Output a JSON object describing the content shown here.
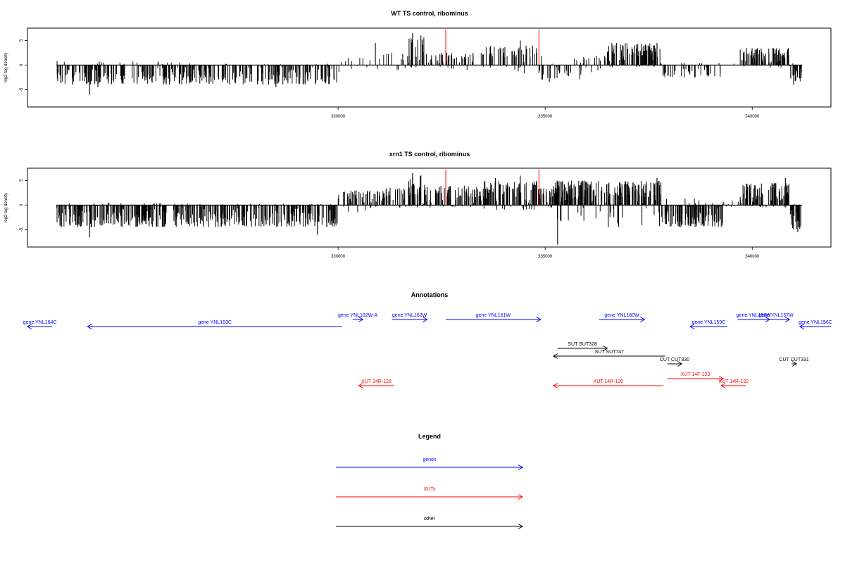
{
  "chart_data": [
    {
      "type": "bar",
      "title": "WT TS control, ribominus",
      "xlabel": "",
      "ylabel": "log2 tag density",
      "xlim": [
        322500,
        341900
      ],
      "ylim": [
        -8.5,
        7.5
      ],
      "xticks": [
        330000,
        335000,
        340000
      ],
      "xtick_labels": [
        "330000",
        "335000",
        "340000"
      ],
      "yticks": [
        -5,
        0,
        5
      ],
      "ytick_labels": [
        "-5",
        "0",
        "5"
      ],
      "data_span": [
        323200,
        341200
      ],
      "marker_lines": [
        {
          "x": 332600,
          "color": "#ff0000"
        },
        {
          "x": 334850,
          "color": "#ff0000"
        }
      ],
      "segments": [
        {
          "from": 323200,
          "to": 326500,
          "min": -4,
          "max": 0.8,
          "density": 1.0
        },
        {
          "from": 326500,
          "to": 330000,
          "min": -4,
          "max": 0.3,
          "density": 0.9
        },
        {
          "from": 330000,
          "to": 331000,
          "min": -1.5,
          "max": 1.5,
          "density": 0.25
        },
        {
          "from": 331000,
          "to": 331700,
          "min": -1,
          "max": 3,
          "density": 0.3
        },
        {
          "from": 331700,
          "to": 332100,
          "min": -0.5,
          "max": 6,
          "density": 1.2
        },
        {
          "from": 332100,
          "to": 333500,
          "min": -1,
          "max": 2.5,
          "density": 0.6
        },
        {
          "from": 333500,
          "to": 334800,
          "min": -2,
          "max": 4,
          "density": 0.7
        },
        {
          "from": 334800,
          "to": 335900,
          "min": -3,
          "max": 2,
          "density": 0.5
        },
        {
          "from": 335900,
          "to": 336500,
          "min": -1.5,
          "max": 2,
          "density": 0.5
        },
        {
          "from": 336500,
          "to": 337800,
          "min": -0.5,
          "max": 4.5,
          "density": 1.4
        },
        {
          "from": 337800,
          "to": 339300,
          "min": -2.5,
          "max": 0.5,
          "density": 0.5
        },
        {
          "from": 339300,
          "to": 339700,
          "min": -0.5,
          "max": 0.5,
          "density": 0.1
        },
        {
          "from": 339700,
          "to": 340900,
          "min": -0.5,
          "max": 3.5,
          "density": 1.3
        },
        {
          "from": 340900,
          "to": 341200,
          "min": -3.5,
          "max": 0.5,
          "density": 1.2
        }
      ],
      "spikes": [
        {
          "x": 324000,
          "y": -6
        },
        {
          "x": 324200,
          "y": -4.5
        },
        {
          "x": 328500,
          "y": -4.5
        },
        {
          "x": 330900,
          "y": 4.5
        },
        {
          "x": 331800,
          "y": 6.5
        },
        {
          "x": 332000,
          "y": 6
        },
        {
          "x": 334400,
          "y": 5
        },
        {
          "x": 335100,
          "y": -3.5
        },
        {
          "x": 337700,
          "y": 4.5
        },
        {
          "x": 341000,
          "y": -4
        }
      ]
    },
    {
      "type": "bar",
      "title": "xrn1 TS control, ribominus",
      "xlabel": "",
      "ylabel": "log2 tag density",
      "xlim": [
        322500,
        341900
      ],
      "ylim": [
        -8.5,
        7.5
      ],
      "xticks": [
        330000,
        335000,
        340000
      ],
      "xtick_labels": [
        "330000",
        "335000",
        "340000"
      ],
      "yticks": [
        -5,
        0,
        5
      ],
      "ytick_labels": [
        "-5",
        "0",
        "5"
      ],
      "data_span": [
        323200,
        341200
      ],
      "marker_lines": [
        {
          "x": 332600,
          "color": "#ff0000"
        },
        {
          "x": 334850,
          "color": "#ff0000"
        }
      ],
      "segments": [
        {
          "from": 323200,
          "to": 326500,
          "min": -4.5,
          "max": 0.5,
          "density": 1.2
        },
        {
          "from": 326500,
          "to": 330000,
          "min": -4.5,
          "max": 0.3,
          "density": 1.1
        },
        {
          "from": 330000,
          "to": 331000,
          "min": -1.5,
          "max": 3,
          "density": 0.9
        },
        {
          "from": 331000,
          "to": 331700,
          "min": -1,
          "max": 3.5,
          "density": 0.9
        },
        {
          "from": 331700,
          "to": 332100,
          "min": -0.5,
          "max": 6,
          "density": 1.4
        },
        {
          "from": 332100,
          "to": 333500,
          "min": -0.5,
          "max": 4,
          "density": 1.0
        },
        {
          "from": 333500,
          "to": 334800,
          "min": -1,
          "max": 5,
          "density": 1.2
        },
        {
          "from": 334800,
          "to": 335200,
          "min": -0.5,
          "max": 3.5,
          "density": 1.0
        },
        {
          "from": 335200,
          "to": 337800,
          "min": -4.5,
          "max": 5,
          "density": 1.5
        },
        {
          "from": 337800,
          "to": 339300,
          "min": -4.5,
          "max": 1.5,
          "density": 1.3
        },
        {
          "from": 339300,
          "to": 339700,
          "min": -1,
          "max": 1,
          "density": 0.3
        },
        {
          "from": 339700,
          "to": 340900,
          "min": -0.5,
          "max": 4.5,
          "density": 1.4
        },
        {
          "from": 340900,
          "to": 341200,
          "min": -5,
          "max": 0.5,
          "density": 1.3
        }
      ],
      "spikes": [
        {
          "x": 324000,
          "y": -6.5
        },
        {
          "x": 329500,
          "y": -6
        },
        {
          "x": 331800,
          "y": 6.5
        },
        {
          "x": 332000,
          "y": 6
        },
        {
          "x": 333800,
          "y": 5.5
        },
        {
          "x": 334400,
          "y": 6
        },
        {
          "x": 335300,
          "y": -8
        },
        {
          "x": 337700,
          "y": 5.5
        },
        {
          "x": 340800,
          "y": 5.5
        },
        {
          "x": 341100,
          "y": -5.5
        }
      ]
    }
  ],
  "annotations": {
    "title": "Annotations",
    "xlim": [
      322500,
      341900
    ],
    "features": [
      {
        "label": "gene YNL164C",
        "from": 323100,
        "to": 322500,
        "row": 1,
        "color": "#0000ff"
      },
      {
        "label": "gene YNL163C",
        "from": 330100,
        "to": 323950,
        "row": 1,
        "color": "#0000ff"
      },
      {
        "label": "gene YNL162W-A",
        "from": 330350,
        "to": 330600,
        "row": 0,
        "color": "#0000ff"
      },
      {
        "label": "gene YNL162W",
        "from": 331300,
        "to": 332150,
        "row": 0,
        "color": "#0000ff"
      },
      {
        "label": "gene YNL161W",
        "from": 332600,
        "to": 334890,
        "row": 0,
        "color": "#0000ff"
      },
      {
        "label": "gene YNL160W",
        "from": 336300,
        "to": 337400,
        "row": 0,
        "color": "#0000ff"
      },
      {
        "label": "gene YNL159C",
        "from": 339400,
        "to": 338500,
        "row": 1,
        "color": "#0000ff"
      },
      {
        "label": "gene YNL158W",
        "from": 339650,
        "to": 340420,
        "row": 0,
        "color": "#0000ff"
      },
      {
        "label": "gene YNL157W",
        "from": 340250,
        "to": 340900,
        "row": 0,
        "color": "#0000ff"
      },
      {
        "label": "gene YNL156C",
        "from": 341900,
        "to": 341150,
        "row": 1,
        "color": "#0000ff"
      },
      {
        "label": "SUT SUT328",
        "from": 335300,
        "to": 336500,
        "row": 2,
        "color": "#000000"
      },
      {
        "label": "SUT SUT747",
        "from": 337900,
        "to": 335200,
        "row": 3,
        "color": "#000000"
      },
      {
        "label": "CUT CUT330",
        "from": 337950,
        "to": 338300,
        "row": 4,
        "color": "#000000"
      },
      {
        "label": "CUT CUT331",
        "from": 340950,
        "to": 341070,
        "row": 4,
        "color": "#000000"
      },
      {
        "label": "XUT 14R-128",
        "from": 331350,
        "to": 330500,
        "row": 6,
        "color": "#ff0000"
      },
      {
        "label": "XUT 14R-130",
        "from": 337850,
        "to": 335200,
        "row": 6,
        "color": "#ff0000"
      },
      {
        "label": "XUT 14F-123",
        "from": 337950,
        "to": 339300,
        "row": 5,
        "color": "#ff0000"
      },
      {
        "label": "XUT 14R-132",
        "from": 339850,
        "to": 339250,
        "row": 6,
        "color": "#ff0000"
      }
    ]
  },
  "legend": {
    "title": "Legend",
    "items": [
      {
        "label": "genes",
        "color": "#0000ff"
      },
      {
        "label": "XUTs",
        "color": "#ff0000"
      },
      {
        "label": "other",
        "color": "#000000"
      }
    ]
  }
}
